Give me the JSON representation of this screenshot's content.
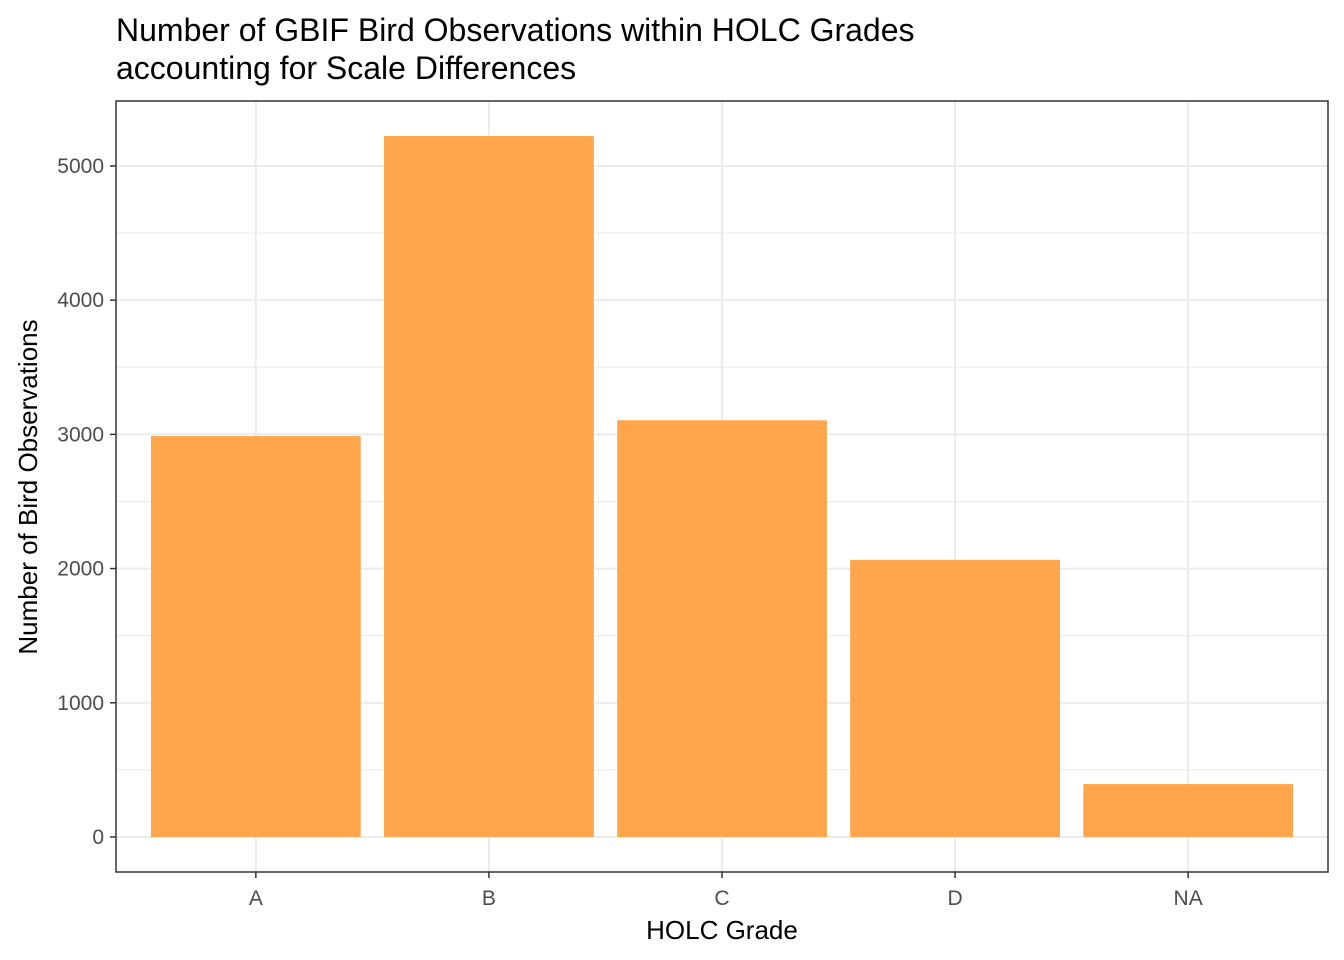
{
  "chart_data": {
    "type": "bar",
    "title": "Number of GBIF Bird Observations within HOLC Grades",
    "subtitle": "accounting for Scale Differences",
    "xlabel": "HOLC Grade",
    "ylabel": "Number of Bird Observations",
    "categories": [
      "A",
      "B",
      "C",
      "D",
      "NA"
    ],
    "values": [
      2987,
      5223,
      3105,
      2065,
      394
    ],
    "ylim": [
      -261,
      5484
    ],
    "yticks": [
      0,
      1000,
      2000,
      3000,
      4000,
      5000
    ],
    "grid": true,
    "bar_color": "#FFA64D",
    "grid_color": "#EBEBEB"
  }
}
